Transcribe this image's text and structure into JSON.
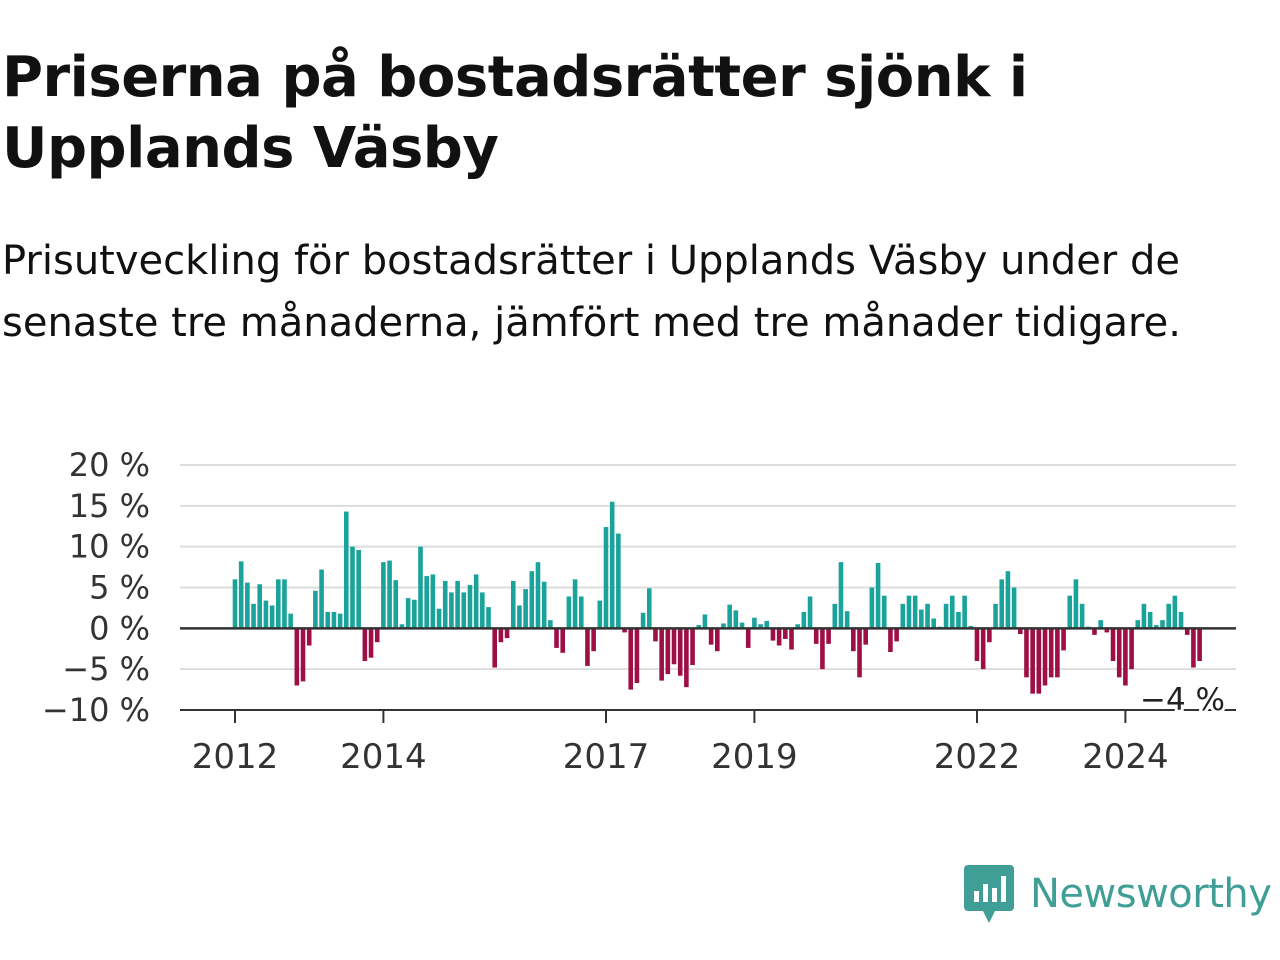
{
  "header": {
    "title": "Priserna på bostadsrätter sjönk i Upplands Väsby",
    "subtitle": "Prisutveckling för bostadsrätter i Upplands Väsby under de senaste tre månaderna, jämfört med tre månader tidigare."
  },
  "brand": {
    "name": "Newsworthy",
    "icon": "newsworthy-logo-icon"
  },
  "colors": {
    "positive": "#1aa39b",
    "negative": "#9e0f45",
    "grid": "#dddddd",
    "axis": "#333333",
    "text": "#333333",
    "brand": "#3f9e95"
  },
  "chart_data": {
    "type": "bar",
    "title": "",
    "xlabel": "",
    "ylabel": "",
    "ylim": [
      -10,
      20
    ],
    "y_ticks": [
      20,
      15,
      10,
      5,
      0,
      -5,
      -10
    ],
    "y_tick_labels": [
      "20 %",
      "15 %",
      "10 %",
      "5 %",
      "0 %",
      "−5 %",
      "−10 %"
    ],
    "x_ticks": [
      2012,
      2014,
      2017,
      2019,
      2022,
      2024
    ],
    "x_tick_labels": [
      "2012",
      "2014",
      "2017",
      "2019",
      "2022",
      "2024"
    ],
    "grid": true,
    "legend": "none",
    "last_value_label": "−4 %",
    "series": [
      {
        "x_start": "2012-01",
        "frequency": "monthly",
        "values": [
          6.0,
          8.2,
          5.6,
          3.0,
          5.4,
          3.4,
          2.8,
          6.0,
          6.0,
          1.8,
          -7.0,
          -6.5,
          -2.1,
          4.6,
          7.2,
          2.0,
          2.0,
          1.8,
          14.3,
          10.0,
          9.6,
          -4.0,
          -3.6,
          -1.7,
          8.1,
          8.3,
          5.9,
          0.5,
          3.7,
          3.5,
          10.0,
          6.4,
          6.6,
          2.4,
          5.8,
          4.4,
          5.8,
          4.4,
          5.3,
          6.6,
          4.4,
          2.6,
          -4.8,
          -1.7,
          -1.2,
          5.8,
          2.8,
          4.8,
          7.0,
          8.1,
          5.7,
          1.0,
          -2.4,
          -3.0,
          3.9,
          6.0,
          3.9,
          -4.6,
          -2.8,
          3.4,
          12.4,
          15.5,
          11.6,
          -0.5,
          -7.5,
          -6.7,
          1.9,
          4.9,
          -1.6,
          -6.4,
          -5.6,
          -4.4,
          -5.8,
          -7.2,
          -4.5,
          0.4,
          1.7,
          -2.0,
          -2.8,
          0.6,
          2.9,
          2.2,
          0.7,
          -2.4,
          1.3,
          0.5,
          0.9,
          -1.5,
          -2.1,
          -1.3,
          -2.6,
          0.5,
          2.0,
          3.9,
          -1.9,
          -5.0,
          -1.9,
          3.0,
          8.1,
          2.1,
          -2.8,
          -6.0,
          -2.0,
          5.0,
          8.0,
          4.0,
          -2.9,
          -1.6,
          3.0,
          4.0,
          4.0,
          2.3,
          3.0,
          1.2,
          0.2,
          3.0,
          4.0,
          2.0,
          4.0,
          0.3,
          -4.0,
          -5.0,
          -1.7,
          3.0,
          6.0,
          7.0,
          5.0,
          -0.7,
          -6.0,
          -8.0,
          -8.0,
          -7.0,
          -6.0,
          -6.0,
          -2.7,
          4.0,
          6.0,
          3.0,
          0.2,
          -0.8,
          1.0,
          -0.5,
          -4.0,
          -6.0,
          -7.0,
          -5.0,
          1.0,
          3.0,
          2.0,
          0.4,
          1.0,
          3.0,
          4.0,
          2.0,
          -0.8,
          -4.8,
          -4.0
        ]
      }
    ]
  }
}
